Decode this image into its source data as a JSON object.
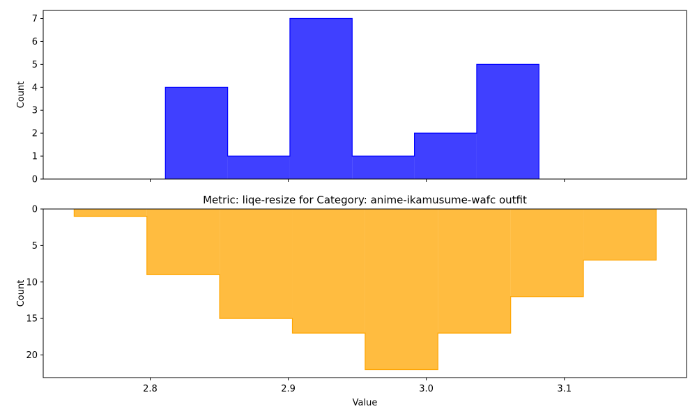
{
  "chart_data": [
    {
      "type": "histogram",
      "title": "",
      "xlabel": "",
      "ylabel": "Count",
      "orientation": "up",
      "color": "#0000ff",
      "edge_color": "#0000ff",
      "opacity": 0.75,
      "bin_edges": [
        2.811,
        2.8561,
        2.9012,
        2.9463,
        2.9914,
        3.0365,
        3.0816
      ],
      "counts": [
        4,
        1,
        7,
        1,
        2,
        5
      ],
      "xlim": [
        2.7225,
        3.1885
      ],
      "ylim": [
        0,
        7.35
      ],
      "yticks": [
        0,
        1,
        2,
        3,
        4,
        5,
        6,
        7
      ],
      "xticks": [
        2.8,
        2.9,
        3.0,
        3.1
      ],
      "show_xtick_labels": false,
      "grid": false
    },
    {
      "type": "histogram",
      "title": "Metric: liqe-resize for Category: anime-ikamusume-wafc outfit",
      "xlabel": "Value",
      "ylabel": "Count",
      "orientation": "down",
      "color": "#ffa500",
      "edge_color": "#ffa500",
      "opacity": 0.75,
      "bin_edges": [
        2.7449,
        2.7976,
        2.8503,
        2.903,
        2.9557,
        3.0084,
        3.0611,
        3.1138,
        3.1665
      ],
      "counts": [
        1,
        9,
        15,
        17,
        22,
        17,
        12,
        7
      ],
      "xlim": [
        2.7225,
        3.1885
      ],
      "ylim": [
        0,
        23.1
      ],
      "yticks": [
        0,
        5,
        10,
        15,
        20
      ],
      "xticks": [
        2.8,
        2.9,
        3.0,
        3.1
      ],
      "xtick_labels": [
        "2.8",
        "2.9",
        "3.0",
        "3.1"
      ],
      "show_xtick_labels": true,
      "grid": false
    }
  ]
}
